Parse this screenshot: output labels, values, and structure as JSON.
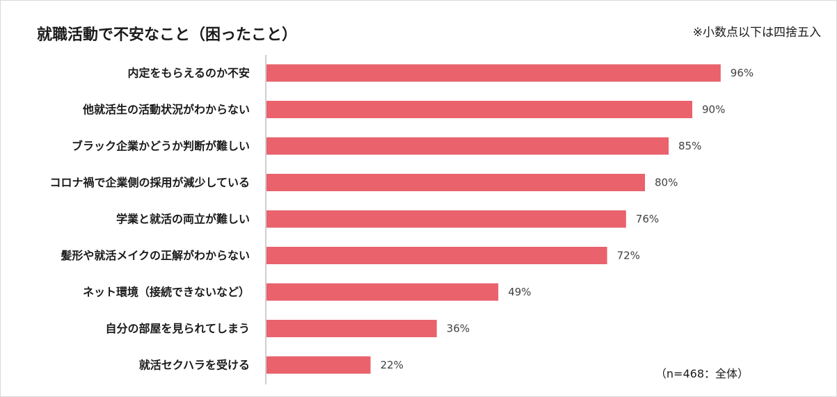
{
  "chart_data": {
    "type": "bar",
    "orientation": "horizontal",
    "title": "就職活動で不安なこと（困ったこと）",
    "note": "※小数点以下は四捨五入",
    "sample": "（n=468：全体）",
    "categories": [
      "内定をもらえるのか不安",
      "他就活生の活動状況がわからない",
      "ブラック企業かどうか判断が難しい",
      "コロナ禍で企業側の採用が減少している",
      "学業と就活の両立が難しい",
      "髪形や就活メイクの正解がわからない",
      "ネット環境（接続できないなど）",
      "自分の部屋を見られてしまう",
      "就活セクハラを受ける"
    ],
    "values": [
      96,
      90,
      85,
      80,
      76,
      72,
      49,
      36,
      22
    ],
    "value_labels": [
      "96%",
      "90%",
      "85%",
      "80%",
      "76%",
      "72%",
      "49%",
      "36%",
      "22%"
    ],
    "xlim": [
      0,
      100
    ],
    "unit": "%",
    "grid": false,
    "bar_color": "#e9626c",
    "axis_color": "#bfbfbf"
  }
}
